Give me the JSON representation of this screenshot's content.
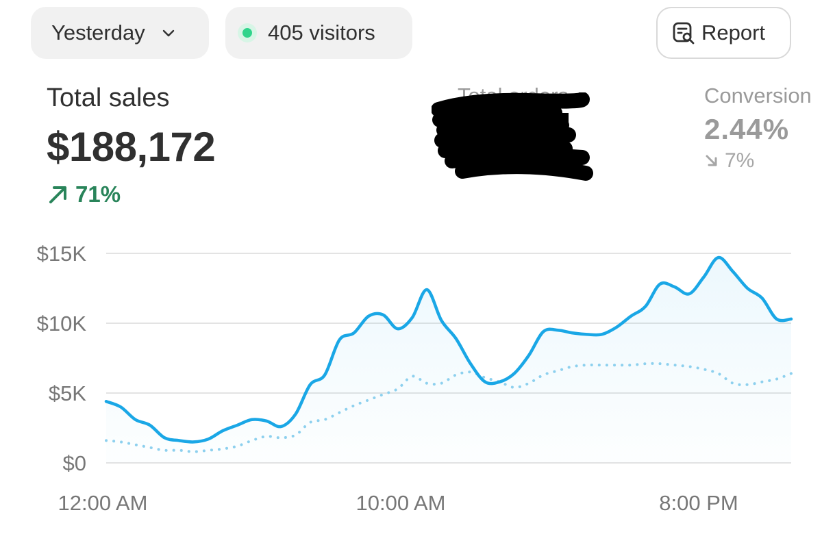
{
  "toolbar": {
    "period_label": "Yesterday",
    "visitors_label": "405 visitors",
    "report_label": "Report"
  },
  "metrics": {
    "total_sales": {
      "label": "Total sales",
      "value": "$188,172",
      "delta": "71%",
      "delta_direction": "up"
    },
    "total_orders": {
      "label": "Total orders"
    },
    "conversion": {
      "label": "Conversion",
      "value": "2.44%",
      "delta": "7%",
      "delta_direction": "down"
    }
  },
  "colors": {
    "accent_line": "#1aa7e6",
    "comparison_line": "#8dd0ee",
    "positive": "#29845a",
    "live_dot": "#2fd48b",
    "grid": "#e3e3e3"
  },
  "icons": {
    "period_chevron": "chevron-down-icon",
    "visitors_dot": "live-dot-icon",
    "report": "report-search-icon",
    "delta_up": "arrow-up-right-icon",
    "delta_down": "arrow-down-right-icon"
  },
  "chart_data": {
    "type": "line",
    "ylim": [
      0,
      15000
    ],
    "yticks": [
      "$0",
      "$5K",
      "$10K",
      "$15K"
    ],
    "xticks": [
      "12:00 AM",
      "10:00 AM",
      "8:00 PM"
    ],
    "x_hours": [
      0,
      23.5
    ],
    "grid": true,
    "series": [
      {
        "style": "solid",
        "x": [
          0,
          0.5,
          1,
          1.5,
          2,
          2.5,
          3,
          3.5,
          4,
          4.5,
          5,
          5.5,
          6,
          6.5,
          7,
          7.5,
          8,
          8.5,
          9,
          9.5,
          10,
          10.5,
          11,
          11.5,
          12,
          12.5,
          13,
          13.5,
          14,
          14.5,
          15,
          15.5,
          16,
          16.5,
          17,
          17.5,
          18,
          18.5,
          19,
          19.5,
          20,
          20.5,
          21,
          21.5,
          22,
          22.5,
          23,
          23.5
        ],
        "values": [
          4400,
          4000,
          3100,
          2700,
          1800,
          1600,
          1500,
          1700,
          2300,
          2700,
          3100,
          3000,
          2600,
          3500,
          5600,
          6300,
          8800,
          9300,
          10500,
          10600,
          9600,
          10400,
          12400,
          10200,
          8900,
          7100,
          5800,
          5800,
          6400,
          7700,
          9400,
          9500,
          9300,
          9200,
          9200,
          9700,
          10500,
          11200,
          12800,
          12600,
          12100,
          13300,
          14700,
          13700,
          12500,
          11800,
          10300,
          10300
        ]
      },
      {
        "style": "dotted",
        "x": [
          0,
          0.5,
          1,
          1.5,
          2,
          2.5,
          3,
          3.5,
          4,
          4.5,
          5,
          5.5,
          6,
          6.5,
          7,
          7.5,
          8,
          8.5,
          9,
          9.5,
          10,
          10.5,
          11,
          11.5,
          12,
          12.5,
          13,
          13.5,
          14,
          14.5,
          15,
          15.5,
          16,
          16.5,
          17,
          17.5,
          18,
          18.5,
          19,
          19.5,
          20,
          20.5,
          21,
          21.5,
          22,
          22.5,
          23,
          23.5
        ],
        "values": [
          1600,
          1500,
          1300,
          1100,
          900,
          900,
          800,
          900,
          1000,
          1200,
          1600,
          1900,
          1800,
          2000,
          2900,
          3100,
          3600,
          4100,
          4500,
          4900,
          5300,
          6200,
          5700,
          5700,
          6300,
          6500,
          6100,
          5800,
          5400,
          5700,
          6300,
          6600,
          6900,
          7000,
          7000,
          7000,
          7000,
          7100,
          7100,
          7000,
          6900,
          6700,
          6400,
          5700,
          5600,
          5800,
          6000,
          6400
        ]
      }
    ]
  }
}
